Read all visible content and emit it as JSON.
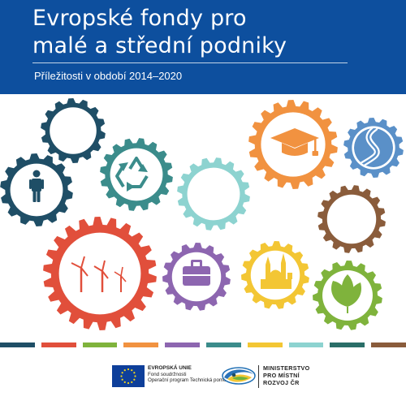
{
  "header": {
    "title_line1": "Evropské fondy pro",
    "title_line2": "malé a střední podniky",
    "subtitle": "Příležitosti v období 2014–2020"
  },
  "gears": [
    {
      "name": "person",
      "color": "#1f4e66",
      "icon": "person-icon"
    },
    {
      "name": "blank-dark",
      "color": "#1f4e66",
      "icon": ""
    },
    {
      "name": "recycle",
      "color": "#3b8c8b",
      "icon": "recycle-icon"
    },
    {
      "name": "blank-light",
      "color": "#8dd3d0",
      "icon": ""
    },
    {
      "name": "graduation",
      "color": "#f19240",
      "icon": "graduation-cap-icon"
    },
    {
      "name": "river",
      "color": "#5a90c8",
      "icon": "river-icon"
    },
    {
      "name": "blank-brown",
      "color": "#8a5c3b",
      "icon": ""
    },
    {
      "name": "wind",
      "color": "#e14f3b",
      "icon": "wind-turbine-icon"
    },
    {
      "name": "briefcase",
      "color": "#8d66b0",
      "icon": "briefcase-icon"
    },
    {
      "name": "church",
      "color": "#f3c634",
      "icon": "church-icon"
    },
    {
      "name": "leaf",
      "color": "#7fb33c",
      "icon": "leaf-icon"
    }
  ],
  "stripe_colors": [
    "#1f4e66",
    "#e14f3b",
    "#7fb33c",
    "#f19240",
    "#8d66b0",
    "#3b8c8b",
    "#f3c634",
    "#8dd3d0",
    "#2a6e68",
    "#8a5c3b"
  ],
  "footer": {
    "eu_line1": "EVROPSKÁ UNIE",
    "eu_line2": "Fond soudržnosti",
    "eu_line3": "Operační program Technická pomoc",
    "mmr_line1": "MINISTERSTVO",
    "mmr_line2": "PRO MÍSTNÍ",
    "mmr_line3": "ROZVOJ ČR"
  }
}
